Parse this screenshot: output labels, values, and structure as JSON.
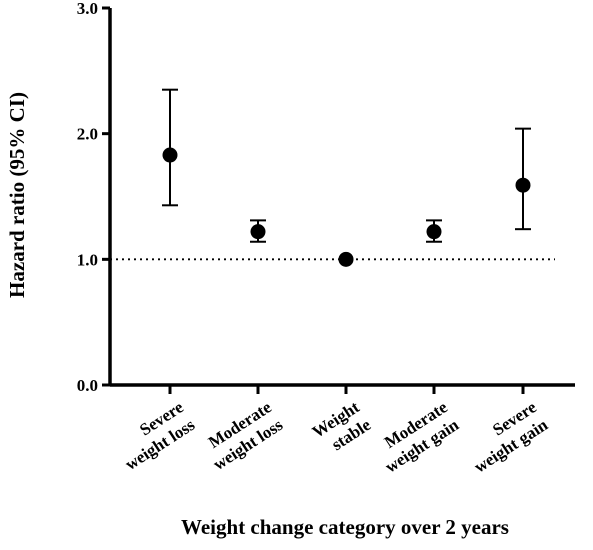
{
  "chart_data": {
    "type": "scatter",
    "title": "",
    "xlabel": "Weight change category over 2 years",
    "ylabel": "Hazard ratio (95% CI)",
    "ylim": [
      0,
      3.0
    ],
    "yticks": [
      "0.0",
      "1.0",
      "2.0",
      "3.0"
    ],
    "categories": [
      [
        "Severe",
        "weight loss"
      ],
      [
        "Moderate",
        "weight loss"
      ],
      [
        "Weight",
        "stable"
      ],
      [
        "Moderate",
        "weight gain"
      ],
      [
        "Severe",
        "weight gain"
      ]
    ],
    "series": [
      {
        "values": [
          1.83,
          1.22,
          1.0,
          1.22,
          1.59
        ],
        "ci_lower": [
          1.43,
          1.14,
          1.0,
          1.14,
          1.24
        ],
        "ci_upper": [
          2.35,
          1.31,
          1.0,
          1.31,
          2.04
        ]
      }
    ],
    "reference_line": 1.0,
    "grid": false,
    "legend": "none"
  }
}
